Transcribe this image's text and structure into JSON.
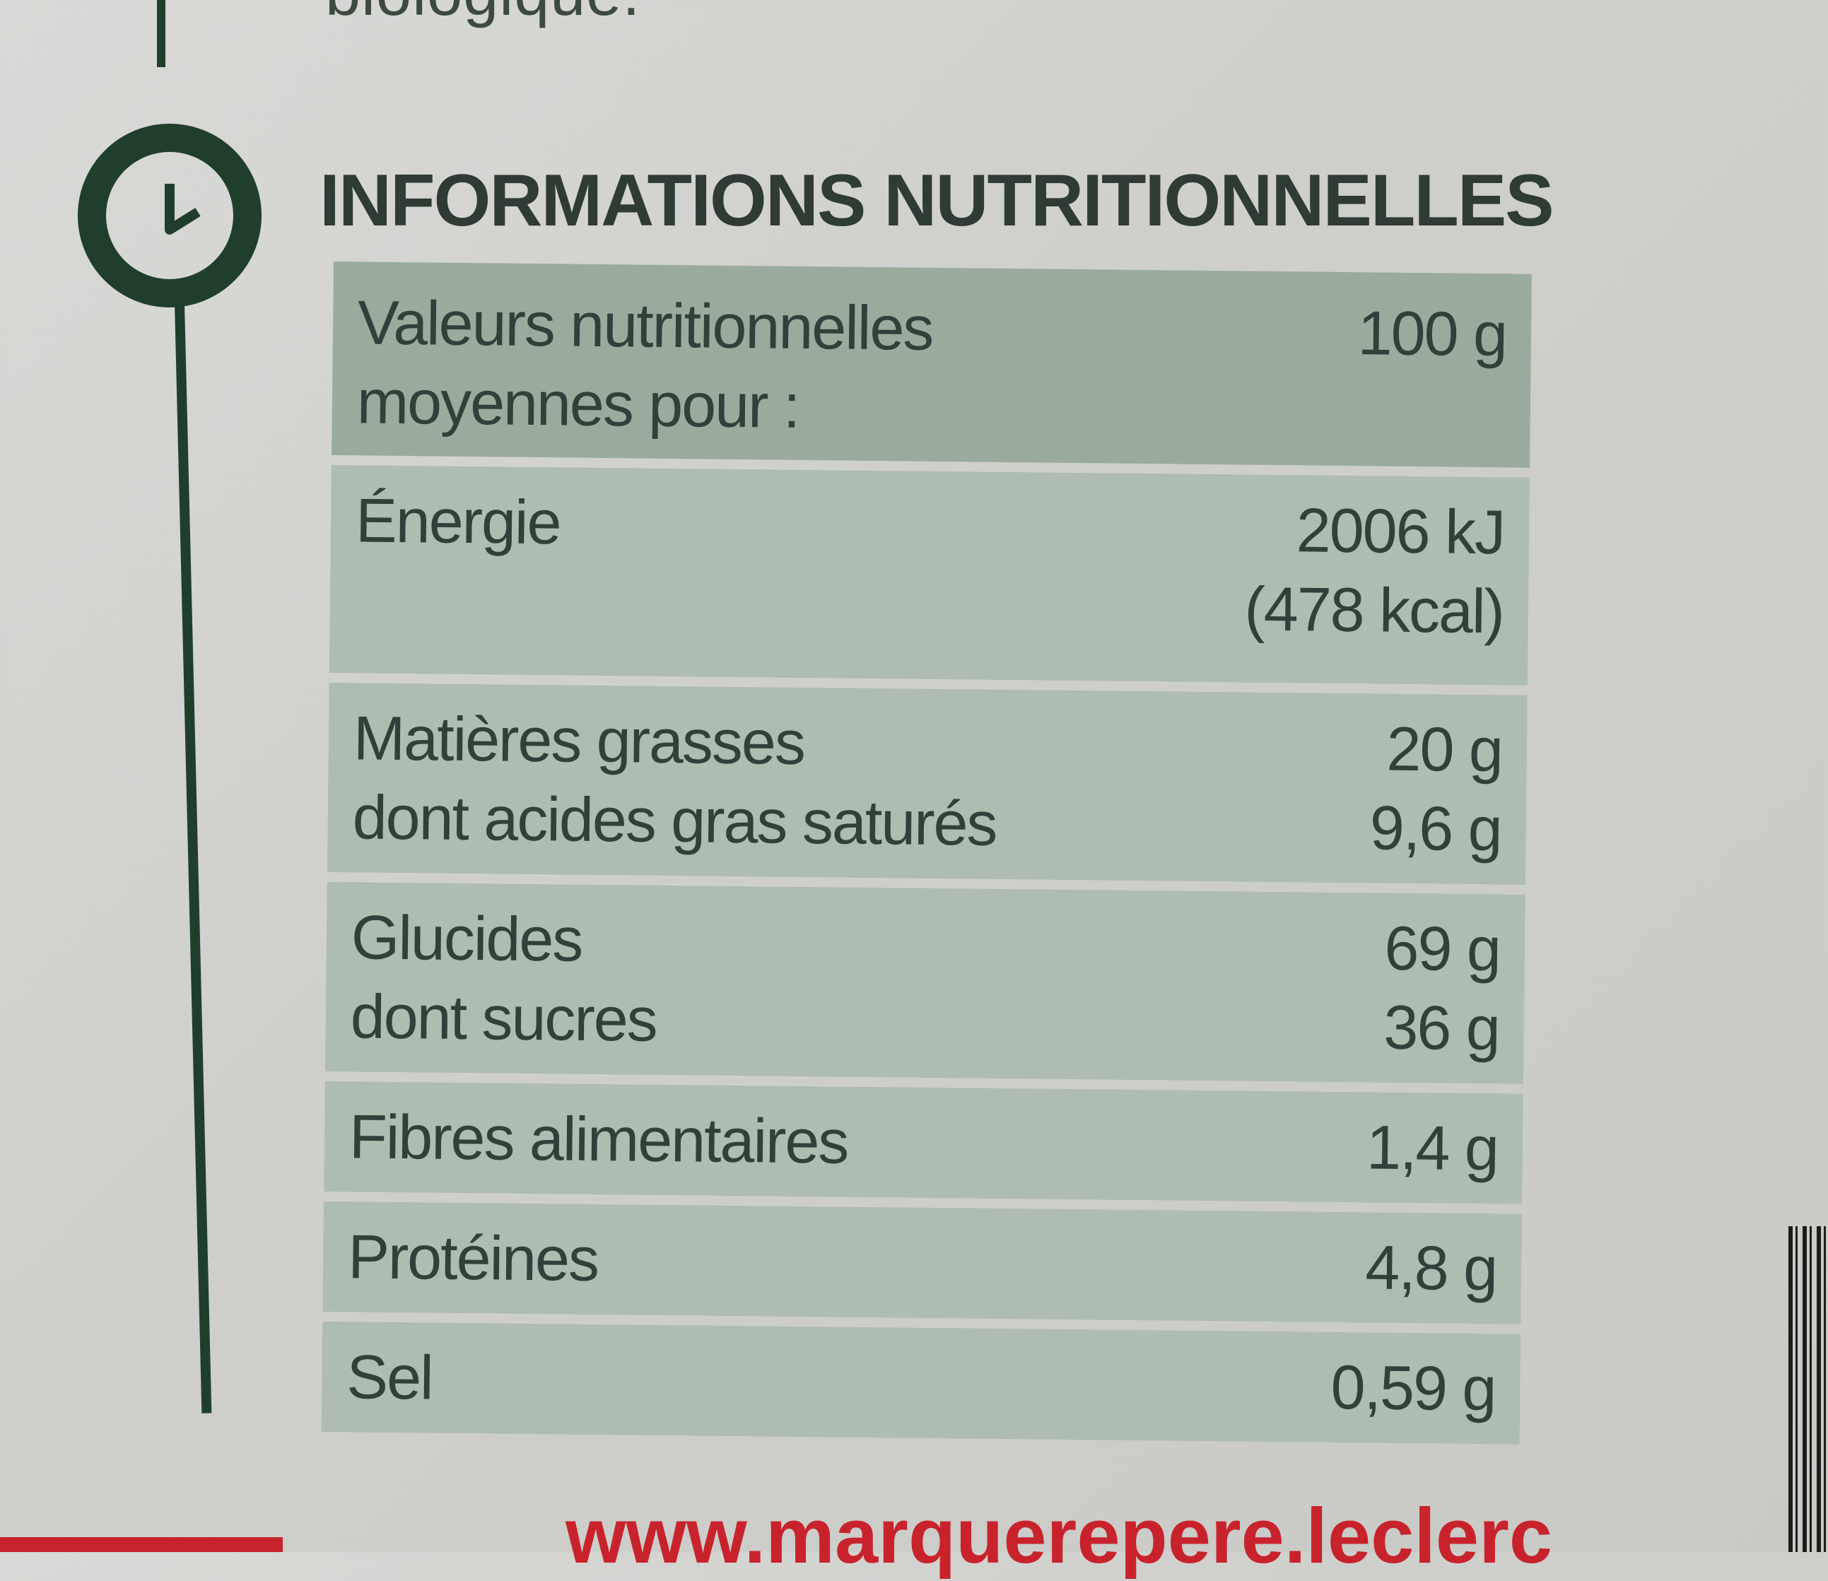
{
  "top_fragment": "biologique.",
  "heading": "INFORMATIONS NUTRITIONNELLES",
  "table": {
    "header": {
      "label": "Valeurs nutritionnelles\nmoyennes pour :",
      "value": "100 g"
    },
    "rows": [
      {
        "label": "Énergie",
        "value": "2006 kJ\n(478 kcal)"
      },
      {
        "label": "Matières grasses\ndont acides gras saturés",
        "value": "20 g\n9,6 g"
      },
      {
        "label": "Glucides\ndont sucres",
        "value": "69 g\n36 g"
      },
      {
        "label": "Fibres alimentaires",
        "value": "1,4 g"
      },
      {
        "label": "Protéines",
        "value": "4,8 g"
      },
      {
        "label": "Sel",
        "value": "0,59 g"
      }
    ]
  },
  "bottom_fragment": "www.marquerepere.leclerc",
  "colors": {
    "accent_green": "#1f3f2c",
    "table_header": "#9aab9e",
    "table_row": "#afbcb1",
    "bottom_red": "#c8232c"
  },
  "icons": {
    "clock": "clock-icon",
    "barcode": "barcode"
  }
}
